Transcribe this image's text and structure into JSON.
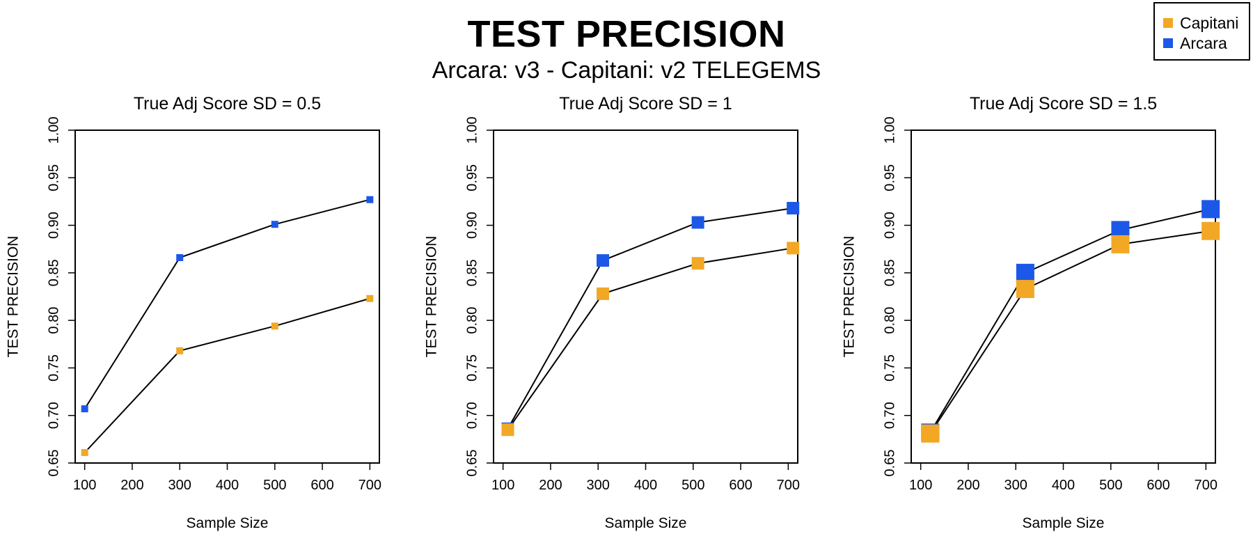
{
  "header": {
    "title": "TEST PRECISION",
    "subtitle": "Arcara: v3 - Capitani: v2 TELEGEMS"
  },
  "legend": {
    "items": [
      {
        "label": "Capitani",
        "color": "#F2A825"
      },
      {
        "label": "Arcara",
        "color": "#1C58E8"
      }
    ]
  },
  "chart_data": [
    {
      "type": "line",
      "title": "True Adj Score SD = 0.5",
      "xlabel": "Sample Size",
      "ylabel": "TEST PRECISION",
      "xlim": [
        80,
        720
      ],
      "ylim": [
        0.65,
        1.0
      ],
      "xticks": [
        100,
        200,
        300,
        400,
        500,
        600,
        700
      ],
      "yticks": [
        "0.65",
        "0.70",
        "0.75",
        "0.80",
        "0.85",
        "0.90",
        "0.95",
        "1.00"
      ],
      "marker_size": "small",
      "series": [
        {
          "name": "Capitani",
          "color": "#F2A825",
          "x": [
            100,
            300,
            500,
            700
          ],
          "y": [
            0.661,
            0.768,
            0.794,
            0.823
          ]
        },
        {
          "name": "Arcara",
          "color": "#1C58E8",
          "x": [
            100,
            300,
            500,
            700
          ],
          "y": [
            0.707,
            0.866,
            0.901,
            0.927
          ]
        }
      ]
    },
    {
      "type": "line",
      "title": "True Adj Score SD = 1",
      "xlabel": "Sample Size",
      "ylabel": "TEST PRECISION",
      "xlim": [
        80,
        720
      ],
      "ylim": [
        0.65,
        1.0
      ],
      "xticks": [
        100,
        200,
        300,
        400,
        500,
        600,
        700
      ],
      "yticks": [
        "0.65",
        "0.70",
        "0.75",
        "0.80",
        "0.85",
        "0.90",
        "0.95",
        "1.00"
      ],
      "marker_size": "medium",
      "series": [
        {
          "name": "Capitani",
          "color": "#F2A825",
          "x": [
            110,
            310,
            510,
            710
          ],
          "y": [
            0.685,
            0.828,
            0.86,
            0.876
          ]
        },
        {
          "name": "Arcara",
          "color": "#1C58E8",
          "x": [
            110,
            310,
            510,
            710
          ],
          "y": [
            0.686,
            0.863,
            0.903,
            0.918
          ]
        }
      ]
    },
    {
      "type": "line",
      "title": "True Adj Score SD = 1.5",
      "xlabel": "Sample Size",
      "ylabel": "TEST PRECISION",
      "xlim": [
        80,
        720
      ],
      "ylim": [
        0.65,
        1.0
      ],
      "xticks": [
        100,
        200,
        300,
        400,
        500,
        600,
        700
      ],
      "yticks": [
        "0.65",
        "0.70",
        "0.75",
        "0.80",
        "0.85",
        "0.90",
        "0.95",
        "1.00"
      ],
      "marker_size": "large",
      "series": [
        {
          "name": "Capitani",
          "color": "#F2A825",
          "x": [
            120,
            320,
            520,
            710
          ],
          "y": [
            0.681,
            0.833,
            0.88,
            0.894
          ]
        },
        {
          "name": "Arcara",
          "color": "#1C58E8",
          "x": [
            120,
            320,
            520,
            710
          ],
          "y": [
            0.682,
            0.85,
            0.895,
            0.917
          ]
        }
      ]
    }
  ]
}
